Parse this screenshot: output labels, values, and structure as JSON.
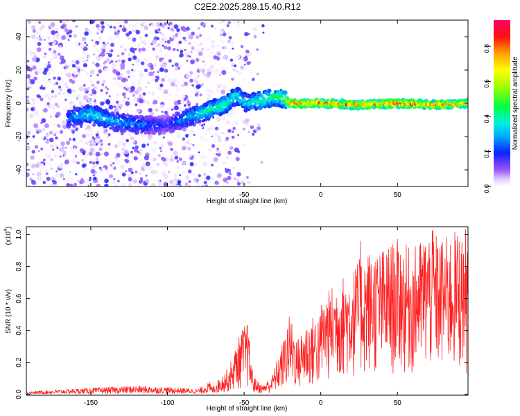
{
  "title": "C2E2.2025.289.15.40.R12",
  "colors": {
    "snr_line": "#ff2020",
    "frame": "#000000"
  },
  "chart_data": [
    {
      "type": "heatmap",
      "xlabel": "Height of straight line (km)",
      "ylabel": "Frequency (Hz)",
      "xlim": [
        -192,
        96
      ],
      "ylim": [
        -50,
        50
      ],
      "xticks": [
        -150,
        -100,
        -50,
        0,
        50
      ],
      "yticks": [
        -40,
        -20,
        0,
        20,
        40
      ],
      "colorbar": {
        "label": "Normalized spectral amplitude",
        "range": [
          0,
          0.95
        ],
        "ticks": [
          0.0,
          0.2,
          0.4,
          0.6,
          0.8
        ],
        "colormap": "rainbow (white-violet-blue-cyan-green-yellow-red-magenta)"
      },
      "ridge": [
        {
          "x": -163,
          "y": -9,
          "amp": 0.3
        },
        {
          "x": -150,
          "y": -6,
          "amp": 0.45
        },
        {
          "x": -135,
          "y": -11,
          "amp": 0.35
        },
        {
          "x": -118,
          "y": -13,
          "amp": 0.3
        },
        {
          "x": -100,
          "y": -13,
          "amp": 0.2
        },
        {
          "x": -88,
          "y": -9,
          "amp": 0.35
        },
        {
          "x": -75,
          "y": -5,
          "amp": 0.45
        },
        {
          "x": -62,
          "y": -1,
          "amp": 0.5
        },
        {
          "x": -55,
          "y": 5,
          "amp": 0.45
        },
        {
          "x": -48,
          "y": 0,
          "amp": 0.4
        },
        {
          "x": -38,
          "y": 2,
          "amp": 0.5
        },
        {
          "x": -30,
          "y": 4,
          "amp": 0.5
        },
        {
          "x": -24,
          "y": 3,
          "amp": 0.55
        },
        {
          "x": -20,
          "y": 0,
          "amp": 0.95
        },
        {
          "x": 0,
          "y": 0,
          "amp": 0.9
        },
        {
          "x": 25,
          "y": -1,
          "amp": 0.9
        },
        {
          "x": 50,
          "y": 0,
          "amp": 0.95
        },
        {
          "x": 75,
          "y": -1,
          "amp": 0.9
        },
        {
          "x": 96,
          "y": 0,
          "amp": 0.85
        }
      ]
    },
    {
      "type": "line",
      "xlabel": "Height of straight line (km)",
      "ylabel": "SNR (10 * v/v)",
      "yscale_label": "(x10",
      "yscale_exponent": "4",
      "xlim": [
        -192,
        96
      ],
      "ylim": [
        -0.005,
        1.05
      ],
      "xticks": [
        -150,
        -100,
        -50,
        0,
        50
      ],
      "yticks": [
        0.0,
        0.2,
        0.4,
        0.6,
        0.8,
        1.0
      ],
      "envelope": [
        {
          "x": -192,
          "y": 0.01
        },
        {
          "x": -160,
          "y": 0.02
        },
        {
          "x": -120,
          "y": 0.03
        },
        {
          "x": -80,
          "y": 0.02
        },
        {
          "x": -70,
          "y": 0.05
        },
        {
          "x": -60,
          "y": 0.15
        },
        {
          "x": -52,
          "y": 0.35
        },
        {
          "x": -48,
          "y": 0.4
        },
        {
          "x": -44,
          "y": 0.1
        },
        {
          "x": -38,
          "y": 0.05
        },
        {
          "x": -32,
          "y": 0.1
        },
        {
          "x": -25,
          "y": 0.28
        },
        {
          "x": -20,
          "y": 0.45
        },
        {
          "x": -15,
          "y": 0.3
        },
        {
          "x": -10,
          "y": 0.4
        },
        {
          "x": 0,
          "y": 0.45
        },
        {
          "x": 10,
          "y": 0.55
        },
        {
          "x": 20,
          "y": 0.6
        },
        {
          "x": 30,
          "y": 0.7
        },
        {
          "x": 40,
          "y": 0.7
        },
        {
          "x": 50,
          "y": 0.75
        },
        {
          "x": 60,
          "y": 0.7
        },
        {
          "x": 70,
          "y": 0.8
        },
        {
          "x": 80,
          "y": 0.75
        },
        {
          "x": 90,
          "y": 0.8
        },
        {
          "x": 96,
          "y": 0.8
        }
      ],
      "peaks": [
        {
          "x": 26,
          "y": 1.05
        },
        {
          "x": 26,
          "y": 0.96
        },
        {
          "x": 73,
          "y": 1.03
        },
        {
          "x": 92,
          "y": 0.95
        },
        {
          "x": 89,
          "y": 0.88
        },
        {
          "x": -58,
          "y": 0.12
        },
        {
          "x": -48,
          "y": 0.43
        }
      ]
    }
  ]
}
